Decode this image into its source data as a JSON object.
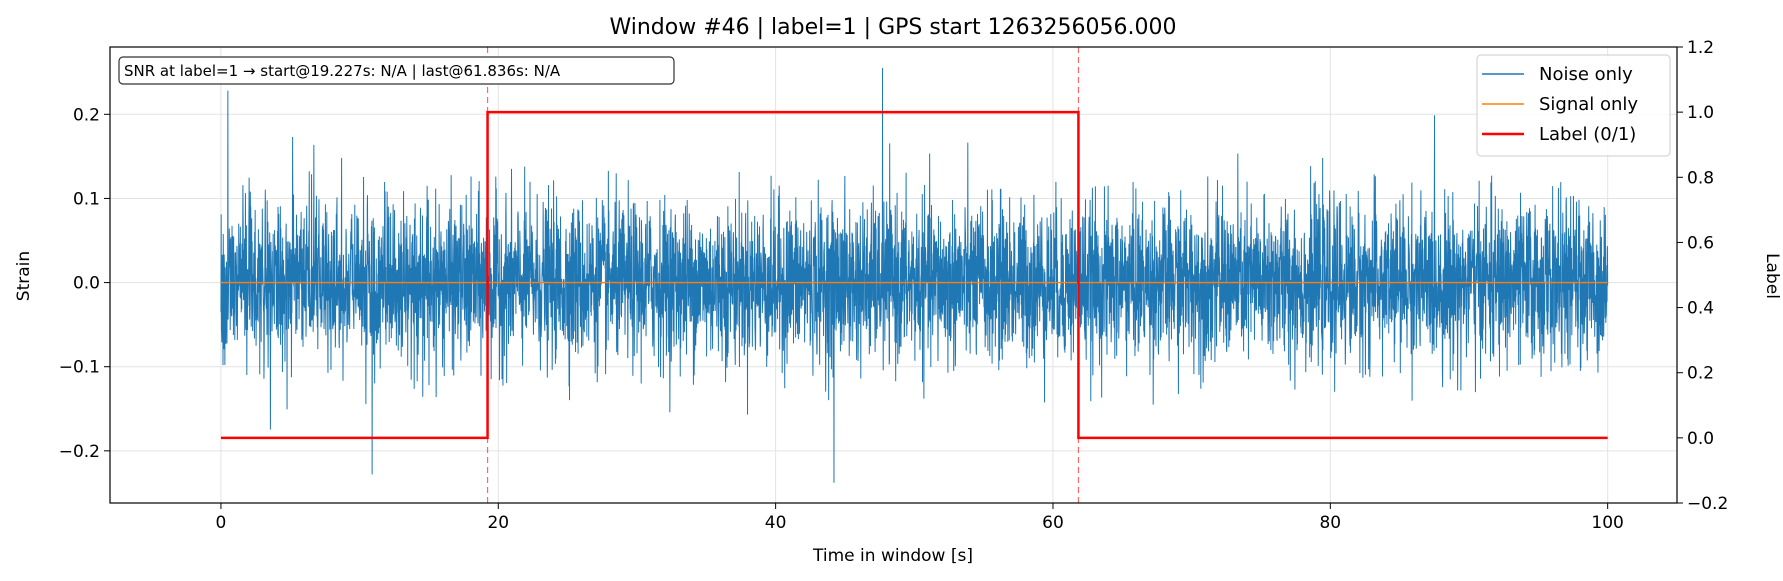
{
  "chart_data": {
    "type": "line",
    "title": "Window #46  |  label=1  |  GPS start 1263256056.000",
    "xlabel": "Time in window [s]",
    "ylabel": "Strain",
    "y2label": "Label",
    "xlim": [
      -8,
      105
    ],
    "ylim": [
      -0.262,
      0.28
    ],
    "y2lim": [
      -0.2,
      1.2
    ],
    "x_ticks": [
      0,
      20,
      40,
      60,
      80,
      100
    ],
    "y_ticks": [
      -0.2,
      -0.1,
      0.0,
      0.1,
      0.2
    ],
    "y_tick_labels": [
      "−0.2",
      "−0.1",
      "0.0",
      "0.1",
      "0.2"
    ],
    "y2_ticks": [
      -0.2,
      0.0,
      0.2,
      0.4,
      0.6,
      0.8,
      1.0,
      1.2
    ],
    "y2_tick_labels": [
      "−0.2",
      "0.0",
      "0.2",
      "0.4",
      "0.6",
      "0.8",
      "1.0",
      "1.2"
    ],
    "grid": true,
    "legend_position": "top-right",
    "annotation": "SNR at label=1 → start@19.227s: N/A | last@61.836s: N/A",
    "vlines": [
      19.227,
      61.836
    ],
    "series": [
      {
        "name": "Noise only",
        "color": "#1f77b4",
        "x_range": [
          0,
          100
        ],
        "envelope_typical": 0.13,
        "notable_peaks": [
          {
            "x": 0.5,
            "y": 0.228
          },
          {
            "x": 47.7,
            "y": 0.255
          },
          {
            "x": 10.9,
            "y": -0.228
          },
          {
            "x": 44.2,
            "y": -0.238
          }
        ]
      },
      {
        "name": "Signal only",
        "color": "#ff7f0e",
        "x": [
          0,
          100
        ],
        "y": [
          0.0,
          0.0
        ]
      },
      {
        "name": "Label (0/1)",
        "color": "#ff0000",
        "axis": "right",
        "x": [
          0,
          19.227,
          19.227,
          61.836,
          61.836,
          100
        ],
        "y": [
          0,
          0,
          1,
          1,
          0,
          0
        ]
      }
    ]
  }
}
